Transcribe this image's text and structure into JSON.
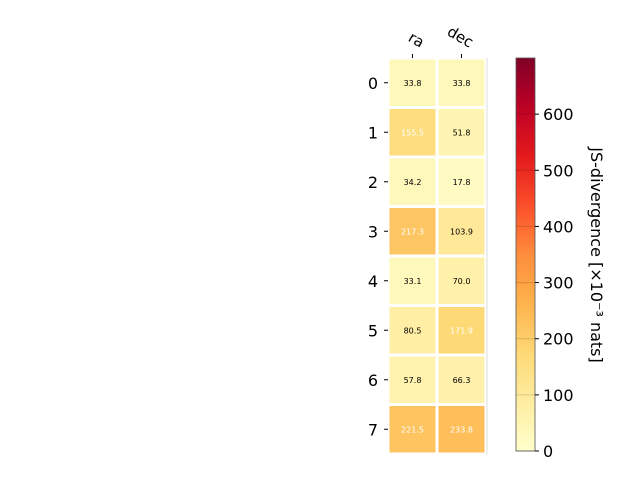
{
  "chart_data": {
    "type": "heatmap",
    "columns": [
      "ra",
      "dec"
    ],
    "rows": [
      "0",
      "1",
      "2",
      "3",
      "4",
      "5",
      "6",
      "7"
    ],
    "values": [
      [
        33.8,
        33.8
      ],
      [
        155.5,
        51.8
      ],
      [
        34.2,
        17.8
      ],
      [
        217.3,
        103.9
      ],
      [
        33.1,
        70.0
      ],
      [
        80.5,
        171.9
      ],
      [
        57.8,
        66.3
      ],
      [
        221.5,
        233.8
      ]
    ],
    "value_labels": [
      [
        "33.8",
        "33.8"
      ],
      [
        "155.5",
        "51.8"
      ],
      [
        "34.2",
        "17.8"
      ],
      [
        "217.3",
        "103.9"
      ],
      [
        "33.1",
        "70.0"
      ],
      [
        "80.5",
        "171.9"
      ],
      [
        "57.8",
        "66.3"
      ],
      [
        "221.5",
        "233.8"
      ]
    ],
    "colorbar": {
      "label": "JS-divergence [×10⁻³ nats]",
      "range": [
        0,
        700
      ],
      "ticks": [
        "0",
        "100",
        "200",
        "300",
        "400",
        "500",
        "600"
      ],
      "colormap": "YlOrRd"
    },
    "label_color_threshold": 150
  }
}
